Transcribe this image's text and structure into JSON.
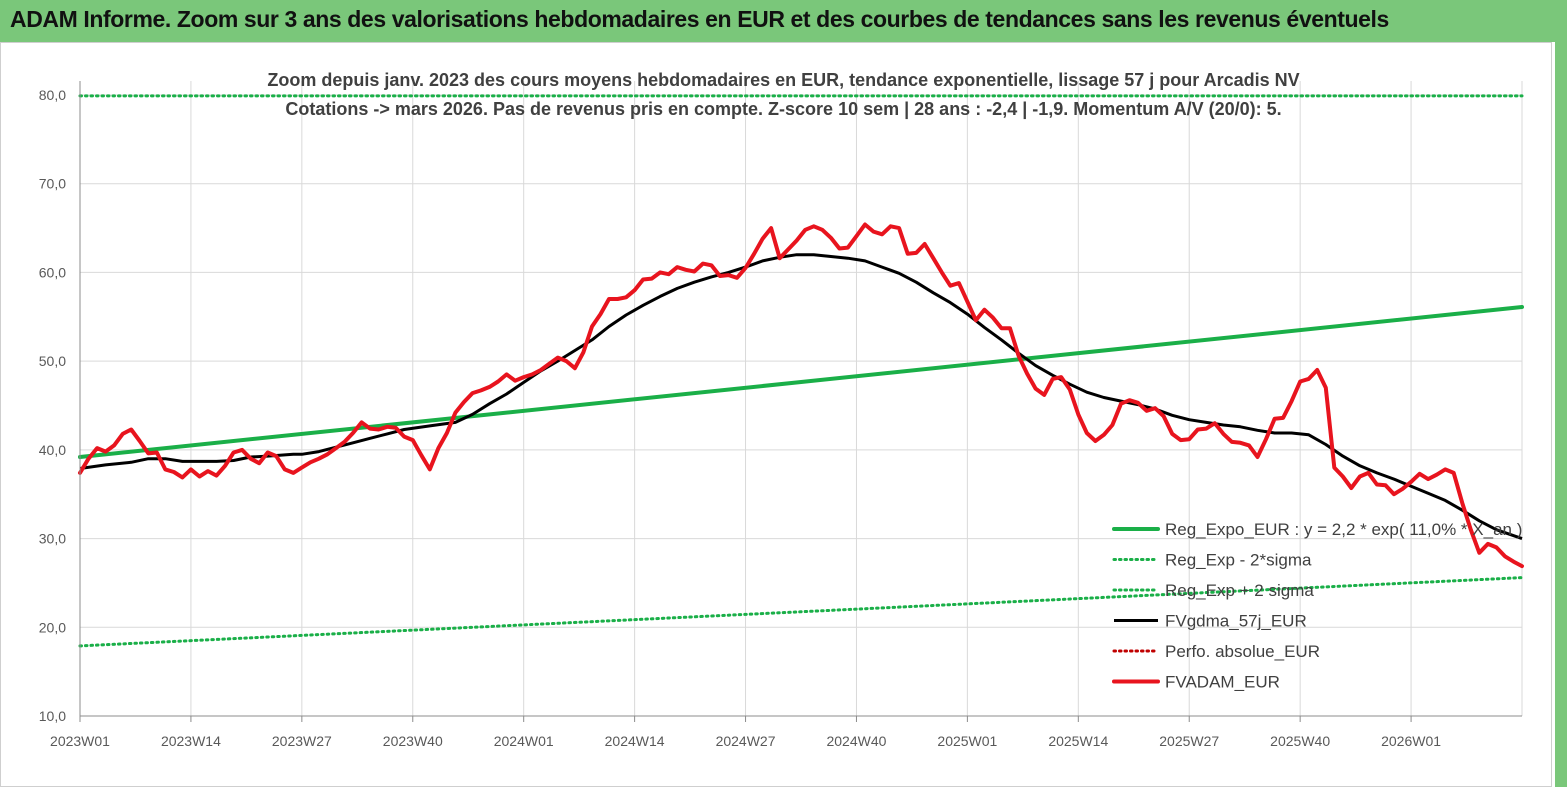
{
  "header": {
    "title": "ADAM Informe. Zoom sur 3 ans des valorisations hebdomadaires en EUR et des courbes de tendances sans les revenus éventuels"
  },
  "colors": {
    "banner": "#7ac77a",
    "trend": "#1aaf48",
    "price": "#e8141e",
    "average": "#000000",
    "perf": "#c00000",
    "grid": "#d9d9d9"
  },
  "chart_data": {
    "type": "line",
    "title_lines": [
      "Zoom depuis janv. 2023 des cours moyens hebdomadaires en EUR, tendance exponentielle, lissage 57 j pour Arcadis NV",
      "Cotations -> mars 2026. Pas de revenus pris en compte. Z-score 10 sem | 28 ans : -2,4 | -1,9. Momentum A/V (20/0): 5."
    ],
    "ylim": [
      10,
      80
    ],
    "yticks": [
      "10,0",
      "20,0",
      "30,0",
      "40,0",
      "50,0",
      "60,0",
      "70,0",
      "80,0"
    ],
    "ytick_values": [
      10,
      20,
      30,
      40,
      50,
      60,
      70,
      80
    ],
    "x_range_weeks": [
      0,
      169
    ],
    "xticks": [
      "2023W01",
      "2023W14",
      "2023W27",
      "2023W40",
      "2024W01",
      "2024W14",
      "2024W27",
      "2024W40",
      "2025W01",
      "2025W14",
      "2025W27",
      "2025W40",
      "2026W01"
    ],
    "xtick_weeks": [
      0,
      13,
      26,
      39,
      52,
      65,
      78,
      91,
      104,
      117,
      130,
      143,
      156
    ],
    "series": [
      {
        "name": "Reg_Expo_EUR : y = 2,2 * exp( 11,0% * X_an )",
        "style": "solid-thick",
        "color": "#1aaf48",
        "points": [
          [
            0,
            39.2
          ],
          [
            169,
            56.1
          ]
        ]
      },
      {
        "name": "Reg_Exp - 2*sigma",
        "style": "dotted",
        "color": "#1aaf48",
        "points": [
          [
            0,
            17.9
          ],
          [
            169,
            25.6
          ]
        ]
      },
      {
        "name": "Reg_Exp + 2 sigma",
        "style": "dotted",
        "color": "#1aaf48",
        "points": [
          [
            0,
            79.9
          ],
          [
            169,
            79.9
          ]
        ]
      },
      {
        "name": "FVgdma_57j_EUR",
        "style": "solid",
        "color": "#000000",
        "points": [
          [
            0,
            37.9
          ],
          [
            3,
            38.3
          ],
          [
            6,
            38.6
          ],
          [
            8,
            39.0
          ],
          [
            10,
            39.0
          ],
          [
            12,
            38.7
          ],
          [
            14,
            38.7
          ],
          [
            16,
            38.7
          ],
          [
            18,
            38.8
          ],
          [
            20,
            39.2
          ],
          [
            22,
            39.3
          ],
          [
            25,
            39.5
          ],
          [
            26,
            39.5
          ],
          [
            28,
            39.8
          ],
          [
            30,
            40.3
          ],
          [
            32,
            40.8
          ],
          [
            34,
            41.3
          ],
          [
            36,
            41.8
          ],
          [
            38,
            42.3
          ],
          [
            41,
            42.7
          ],
          [
            44,
            43.1
          ],
          [
            46,
            44.0
          ],
          [
            48,
            45.2
          ],
          [
            50,
            46.3
          ],
          [
            52,
            47.6
          ],
          [
            54,
            48.9
          ],
          [
            56,
            50.0
          ],
          [
            58,
            51.2
          ],
          [
            60,
            52.4
          ],
          [
            62,
            53.9
          ],
          [
            64,
            55.2
          ],
          [
            66,
            56.3
          ],
          [
            68,
            57.3
          ],
          [
            70,
            58.2
          ],
          [
            72,
            58.9
          ],
          [
            74,
            59.5
          ],
          [
            76,
            60.0
          ],
          [
            78,
            60.6
          ],
          [
            80,
            61.3
          ],
          [
            82,
            61.7
          ],
          [
            84,
            62.0
          ],
          [
            86,
            62.0
          ],
          [
            88,
            61.8
          ],
          [
            90,
            61.6
          ],
          [
            92,
            61.3
          ],
          [
            94,
            60.6
          ],
          [
            96,
            59.9
          ],
          [
            98,
            58.9
          ],
          [
            100,
            57.7
          ],
          [
            102,
            56.6
          ],
          [
            104,
            55.3
          ],
          [
            106,
            53.8
          ],
          [
            108,
            52.4
          ],
          [
            110,
            50.9
          ],
          [
            112,
            49.5
          ],
          [
            114,
            48.4
          ],
          [
            116,
            47.4
          ],
          [
            118,
            46.5
          ],
          [
            120,
            45.9
          ],
          [
            122,
            45.5
          ],
          [
            124,
            45.1
          ],
          [
            126,
            44.6
          ],
          [
            128,
            43.9
          ],
          [
            130,
            43.4
          ],
          [
            132,
            43.1
          ],
          [
            134,
            42.8
          ],
          [
            136,
            42.6
          ],
          [
            138,
            42.2
          ],
          [
            140,
            41.9
          ],
          [
            142,
            41.9
          ],
          [
            144,
            41.7
          ],
          [
            146,
            40.6
          ],
          [
            148,
            39.3
          ],
          [
            150,
            38.2
          ],
          [
            152,
            37.4
          ],
          [
            154,
            36.7
          ],
          [
            156,
            35.9
          ],
          [
            158,
            35.1
          ],
          [
            160,
            34.3
          ],
          [
            162,
            33.2
          ],
          [
            164,
            32.0
          ],
          [
            166,
            31.0
          ],
          [
            169,
            30.0
          ]
        ]
      },
      {
        "name": "Perfo. absolue_EUR",
        "style": "dotted",
        "color": "#c00000",
        "points": []
      },
      {
        "name": "FVADAM_EUR",
        "style": "solid-thick",
        "color": "#e8141e",
        "points": [
          [
            0,
            37.4
          ],
          [
            1,
            39.0
          ],
          [
            2,
            40.2
          ],
          [
            3,
            39.8
          ],
          [
            4,
            40.5
          ],
          [
            5,
            41.8
          ],
          [
            6,
            42.3
          ],
          [
            7,
            41.0
          ],
          [
            8,
            39.6
          ],
          [
            9,
            39.7
          ],
          [
            10,
            37.8
          ],
          [
            11,
            37.5
          ],
          [
            12,
            36.9
          ],
          [
            13,
            37.8
          ],
          [
            14,
            37.0
          ],
          [
            15,
            37.6
          ],
          [
            16,
            37.1
          ],
          [
            17,
            38.2
          ],
          [
            18,
            39.7
          ],
          [
            19,
            40.0
          ],
          [
            20,
            39.0
          ],
          [
            21,
            38.5
          ],
          [
            22,
            39.7
          ],
          [
            23,
            39.3
          ],
          [
            24,
            37.8
          ],
          [
            25,
            37.4
          ],
          [
            26,
            38.0
          ],
          [
            27,
            38.6
          ],
          [
            28,
            39.0
          ],
          [
            29,
            39.5
          ],
          [
            30,
            40.2
          ],
          [
            31,
            40.9
          ],
          [
            32,
            41.9
          ],
          [
            33,
            43.1
          ],
          [
            34,
            42.4
          ],
          [
            35,
            42.3
          ],
          [
            36,
            42.6
          ],
          [
            37,
            42.5
          ],
          [
            38,
            41.5
          ],
          [
            39,
            41.1
          ],
          [
            40,
            39.4
          ],
          [
            41,
            37.8
          ],
          [
            42,
            40.2
          ],
          [
            43,
            41.9
          ],
          [
            44,
            44.2
          ],
          [
            45,
            45.4
          ],
          [
            46,
            46.4
          ],
          [
            47,
            46.7
          ],
          [
            48,
            47.1
          ],
          [
            49,
            47.7
          ],
          [
            50,
            48.5
          ],
          [
            51,
            47.8
          ],
          [
            52,
            48.2
          ],
          [
            53,
            48.5
          ],
          [
            54,
            49.0
          ],
          [
            55,
            49.7
          ],
          [
            56,
            50.4
          ],
          [
            57,
            50.0
          ],
          [
            58,
            49.2
          ],
          [
            59,
            51.0
          ],
          [
            60,
            53.9
          ],
          [
            61,
            55.3
          ],
          [
            62,
            57.0
          ],
          [
            63,
            57.0
          ],
          [
            64,
            57.2
          ],
          [
            65,
            58.0
          ],
          [
            66,
            59.2
          ],
          [
            67,
            59.3
          ],
          [
            68,
            60.0
          ],
          [
            69,
            59.8
          ],
          [
            70,
            60.6
          ],
          [
            71,
            60.3
          ],
          [
            72,
            60.1
          ],
          [
            73,
            61.0
          ],
          [
            74,
            60.8
          ],
          [
            75,
            59.6
          ],
          [
            76,
            59.7
          ],
          [
            77,
            59.4
          ],
          [
            78,
            60.5
          ],
          [
            79,
            62.1
          ],
          [
            80,
            63.8
          ],
          [
            81,
            65.0
          ],
          [
            82,
            61.6
          ],
          [
            83,
            62.6
          ],
          [
            84,
            63.6
          ],
          [
            85,
            64.8
          ],
          [
            86,
            65.2
          ],
          [
            87,
            64.8
          ],
          [
            88,
            63.9
          ],
          [
            89,
            62.7
          ],
          [
            90,
            62.8
          ],
          [
            91,
            64.1
          ],
          [
            92,
            65.4
          ],
          [
            93,
            64.6
          ],
          [
            94,
            64.3
          ],
          [
            95,
            65.2
          ],
          [
            96,
            65.0
          ],
          [
            97,
            62.1
          ],
          [
            98,
            62.2
          ],
          [
            99,
            63.2
          ],
          [
            100,
            61.6
          ],
          [
            101,
            60.0
          ],
          [
            102,
            58.5
          ],
          [
            103,
            58.8
          ],
          [
            104,
            56.7
          ],
          [
            105,
            54.6
          ],
          [
            106,
            55.8
          ],
          [
            107,
            54.9
          ],
          [
            108,
            53.7
          ],
          [
            109,
            53.7
          ],
          [
            110,
            50.6
          ],
          [
            111,
            48.6
          ],
          [
            112,
            46.9
          ],
          [
            113,
            46.2
          ],
          [
            114,
            48.0
          ],
          [
            115,
            48.2
          ],
          [
            116,
            46.8
          ],
          [
            117,
            44.0
          ],
          [
            118,
            41.9
          ],
          [
            119,
            41.0
          ],
          [
            120,
            41.7
          ],
          [
            121,
            42.8
          ],
          [
            122,
            45.2
          ],
          [
            123,
            45.6
          ],
          [
            124,
            45.3
          ],
          [
            125,
            44.4
          ],
          [
            126,
            44.7
          ],
          [
            127,
            43.8
          ],
          [
            128,
            41.8
          ],
          [
            129,
            41.1
          ],
          [
            130,
            41.2
          ],
          [
            131,
            42.3
          ],
          [
            132,
            42.4
          ],
          [
            133,
            43.0
          ],
          [
            134,
            41.8
          ],
          [
            135,
            40.9
          ],
          [
            136,
            40.8
          ],
          [
            137,
            40.5
          ],
          [
            138,
            39.2
          ],
          [
            139,
            41.2
          ],
          [
            140,
            43.5
          ],
          [
            141,
            43.6
          ],
          [
            142,
            45.5
          ],
          [
            143,
            47.7
          ],
          [
            144,
            48.0
          ],
          [
            145,
            49.0
          ],
          [
            146,
            47.0
          ],
          [
            147,
            38.0
          ],
          [
            148,
            37.0
          ],
          [
            149,
            35.7
          ],
          [
            150,
            37.0
          ],
          [
            151,
            37.4
          ],
          [
            152,
            36.1
          ],
          [
            153,
            36.0
          ],
          [
            154,
            35.0
          ],
          [
            155,
            35.6
          ],
          [
            156,
            36.4
          ],
          [
            157,
            37.3
          ],
          [
            158,
            36.7
          ],
          [
            159,
            37.2
          ],
          [
            160,
            37.8
          ],
          [
            161,
            37.4
          ],
          [
            162,
            34.0
          ],
          [
            163,
            31.0
          ],
          [
            164,
            28.4
          ],
          [
            165,
            29.4
          ],
          [
            166,
            29.0
          ],
          [
            167,
            28.0
          ],
          [
            168,
            27.4
          ],
          [
            169,
            26.9
          ]
        ]
      }
    ],
    "legend_position": "bottom-right"
  }
}
